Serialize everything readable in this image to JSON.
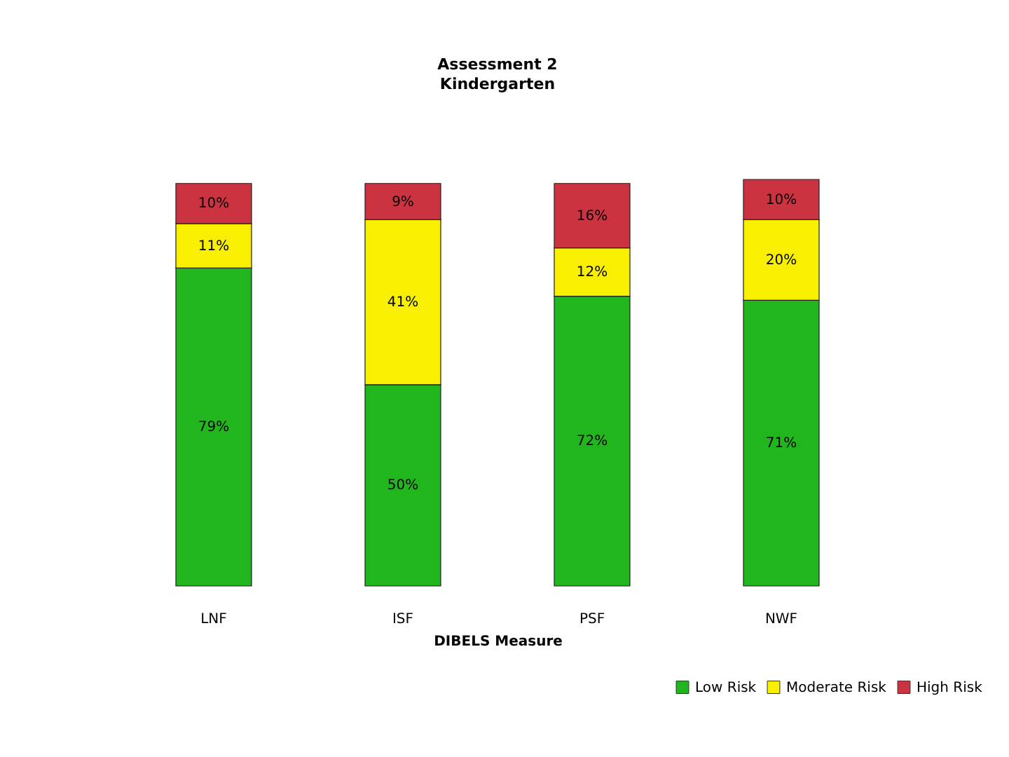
{
  "chart_data": {
    "type": "bar",
    "title": "Assessment 2",
    "subtitle": "Kindergarten",
    "xlabel": "DIBELS Measure",
    "categories": [
      "LNF",
      "ISF",
      "PSF",
      "NWF"
    ],
    "stacked": true,
    "series": [
      {
        "name": "Low Risk",
        "color": "#22b61e",
        "values": [
          79,
          50,
          72,
          71
        ],
        "value_labels": [
          "79%",
          "50%",
          "72%",
          "71%"
        ]
      },
      {
        "name": "Moderate Risk",
        "color": "#f8f000",
        "values": [
          11,
          41,
          12,
          20
        ],
        "value_labels": [
          "11%",
          "41%",
          "12%",
          "20%"
        ]
      },
      {
        "name": "High Risk",
        "color": "#cc3340",
        "values": [
          10,
          9,
          16,
          10
        ],
        "value_labels": [
          "10%",
          "9%",
          "16%",
          "10%"
        ]
      }
    ],
    "legend": "bottom right",
    "tick_labels": "x"
  }
}
